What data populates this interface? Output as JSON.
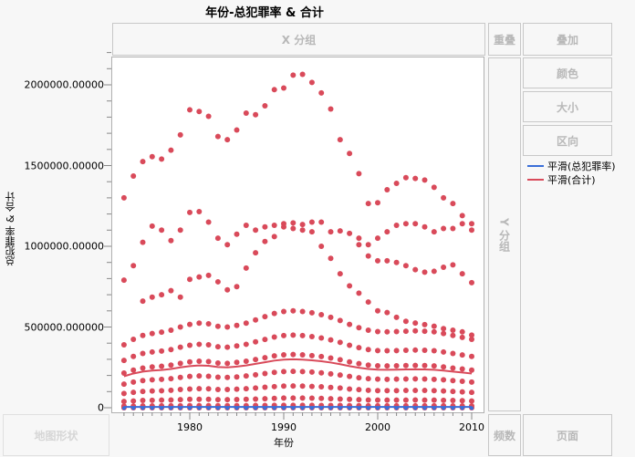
{
  "title": "年份-总犯罪率 & 合计",
  "zones": {
    "x_group": "X 分组",
    "overlay": "重叠",
    "y_group": "Y 分组",
    "wrap": "叠加",
    "color": "颜色",
    "size": "大小",
    "interval": "区向",
    "map_shape": "地图形状",
    "freq": "频数",
    "page": "页面"
  },
  "legend": [
    {
      "label": "平滑(总犯罪率)",
      "color": "#3a6ed8"
    },
    {
      "label": "平滑(合计)",
      "color": "#d94a5a"
    }
  ],
  "chart_data": {
    "type": "scatter",
    "title": "年份-总犯罪率 & 合计",
    "xlabel": "年份",
    "ylabel": "总犯罪率 & 合计",
    "xlim": [
      1972,
      2011
    ],
    "ylim": [
      0,
      2200000
    ],
    "xticks": [
      1980,
      1990,
      2000,
      2010
    ],
    "xtick_labels": [
      "1980",
      "1990",
      "2000",
      "2010"
    ],
    "yticks": [
      0,
      500000,
      1000000,
      1500000,
      2000000
    ],
    "ytick_labels": [
      "0",
      "500000.000000",
      "1000000.00000",
      "1500000.00000",
      "2000000.00000"
    ],
    "point_color": "#d94a5a",
    "years": [
      1973,
      1974,
      1975,
      1976,
      1977,
      1978,
      1979,
      1980,
      1981,
      1982,
      1983,
      1984,
      1985,
      1986,
      1987,
      1988,
      1989,
      1990,
      1991,
      1992,
      1993,
      1994,
      1995,
      1996,
      1997,
      1998,
      1999,
      2000,
      2001,
      2002,
      2003,
      2004,
      2005,
      2006,
      2007,
      2008,
      2009,
      2010
    ],
    "series_合计_points": [
      [
        1300000,
        1435000,
        1525000,
        1555000,
        1540000,
        1595000,
        1690000,
        1845000,
        1835000,
        1805000,
        1680000,
        1660000,
        1720000,
        1825000,
        1815000,
        1870000,
        1970000,
        1980000,
        2060000,
        2065000,
        2015000,
        1950000,
        1850000,
        1660000,
        1575000,
        1450000,
        1265000,
        1270000,
        1350000,
        1390000,
        1425000,
        1420000,
        1410000,
        1365000,
        1300000,
        1265000,
        1190000,
        1140000
      ],
      [
        790000,
        880000,
        1025000,
        1125000,
        1100000,
        1035000,
        1100000,
        1210000,
        1215000,
        1150000,
        1050000,
        1010000,
        1075000,
        1130000,
        1100000,
        1120000,
        1130000,
        1140000,
        1145000,
        1135000,
        1150000,
        1150000,
        1090000,
        1095000,
        1080000,
        1050000,
        1010000,
        1050000,
        1090000,
        1130000,
        1140000,
        1140000,
        1120000,
        1090000,
        1110000,
        1110000,
        1140000,
        1100000
      ],
      [
        null,
        null,
        660000,
        685000,
        700000,
        725000,
        685000,
        795000,
        810000,
        820000,
        780000,
        730000,
        750000,
        865000,
        960000,
        1030000,
        1060000,
        1120000,
        1110000,
        1100000,
        1090000,
        1000000,
        925000,
        830000,
        755000,
        710000,
        655000,
        600000,
        590000,
        560000,
        535000,
        525000,
        515000,
        505000,
        490000,
        480000,
        470000,
        450000
      ],
      [
        null,
        null,
        null,
        null,
        null,
        null,
        null,
        null,
        null,
        null,
        null,
        null,
        null,
        null,
        null,
        null,
        null,
        null,
        null,
        null,
        null,
        null,
        null,
        null,
        null,
        1010000,
        940000,
        910000,
        910000,
        900000,
        880000,
        855000,
        840000,
        845000,
        870000,
        885000,
        830000,
        775000
      ],
      [
        390000,
        424000,
        448000,
        460000,
        468000,
        480000,
        500000,
        516000,
        524000,
        520000,
        504000,
        500000,
        510000,
        524000,
        544000,
        564000,
        584000,
        596000,
        600000,
        596000,
        588000,
        576000,
        560000,
        540000,
        516000,
        496000,
        480000,
        472000,
        470000,
        472000,
        474000,
        476000,
        474000,
        470000,
        460000,
        448000,
        436000,
        424000
      ],
      [
        293000,
        318000,
        336000,
        345000,
        351000,
        360000,
        375000,
        387000,
        393000,
        390000,
        378000,
        375000,
        383000,
        393000,
        408000,
        423000,
        438000,
        447000,
        450000,
        447000,
        441000,
        432000,
        420000,
        405000,
        387000,
        372000,
        360000,
        354000,
        353000,
        354000,
        356000,
        357000,
        356000,
        353000,
        345000,
        336000,
        327000,
        318000
      ],
      [
        215000,
        233000,
        246000,
        253000,
        257000,
        264000,
        275000,
        284000,
        288000,
        286000,
        277000,
        275000,
        281000,
        288000,
        299000,
        310000,
        321000,
        328000,
        330000,
        328000,
        323000,
        317000,
        308000,
        297000,
        284000,
        273000,
        264000,
        260000,
        259000,
        260000,
        261000,
        262000,
        261000,
        259000,
        253000,
        246000,
        240000,
        233000
      ],
      [
        146000,
        159000,
        168000,
        173000,
        176000,
        180000,
        188000,
        194000,
        197000,
        195000,
        189000,
        188000,
        191000,
        197000,
        204000,
        212000,
        219000,
        224000,
        225000,
        224000,
        221000,
        216000,
        210000,
        203000,
        194000,
        186000,
        180000,
        177000,
        176000,
        177000,
        178000,
        179000,
        178000,
        176000,
        173000,
        168000,
        164000,
        159000
      ],
      [
        88000,
        95000,
        101000,
        104000,
        105000,
        108000,
        113000,
        116000,
        118000,
        117000,
        113000,
        113000,
        115000,
        118000,
        122000,
        127000,
        131000,
        134000,
        135000,
        134000,
        132000,
        130000,
        126000,
        122000,
        116000,
        112000,
        108000,
        106000,
        106000,
        106000,
        107000,
        107000,
        107000,
        106000,
        104000,
        101000,
        98000,
        95000
      ],
      [
        39000,
        42000,
        45000,
        46000,
        47000,
        48000,
        50000,
        52000,
        52000,
        52000,
        50000,
        50000,
        51000,
        52000,
        54000,
        56000,
        58000,
        60000,
        60000,
        60000,
        59000,
        58000,
        56000,
        54000,
        52000,
        50000,
        48000,
        47000,
        47000,
        47000,
        47000,
        48000,
        47000,
        47000,
        46000,
        45000,
        44000,
        42000
      ],
      [
        10000,
        10000,
        11000,
        11000,
        12000,
        12000,
        12000,
        13000,
        13000,
        13000,
        13000,
        13000,
        13000,
        13000,
        14000,
        14000,
        15000,
        15000,
        15000,
        15000,
        15000,
        14000,
        14000,
        14000,
        13000,
        13000,
        12000,
        12000,
        12000,
        12000,
        12000,
        12000,
        12000,
        12000,
        12000,
        11000,
        11000,
        11000
      ]
    ],
    "smooth_合计": [
      195000,
      212000,
      224000,
      230000,
      234000,
      240000,
      250000,
      258000,
      262000,
      260000,
      252000,
      250000,
      255000,
      262000,
      272000,
      282000,
      292000,
      298000,
      300000,
      298000,
      294000,
      288000,
      280000,
      270000,
      258000,
      248000,
      240000,
      236000,
      235000,
      236000,
      237000,
      238000,
      237000,
      235000,
      230000,
      224000,
      218000,
      212000
    ],
    "smooth_总犯罪率": [
      5000,
      5000,
      5000,
      5000,
      5000,
      5000,
      5000,
      5000,
      5000,
      5000,
      5000,
      5000,
      5000,
      5000,
      5000,
      5000,
      5000,
      5000,
      5000,
      5000,
      5000,
      5000,
      5000,
      5000,
      5000,
      5000,
      5000,
      5000,
      5000,
      5000,
      5000,
      5000,
      5000,
      5000,
      5000,
      5000,
      5000,
      5000
    ]
  }
}
